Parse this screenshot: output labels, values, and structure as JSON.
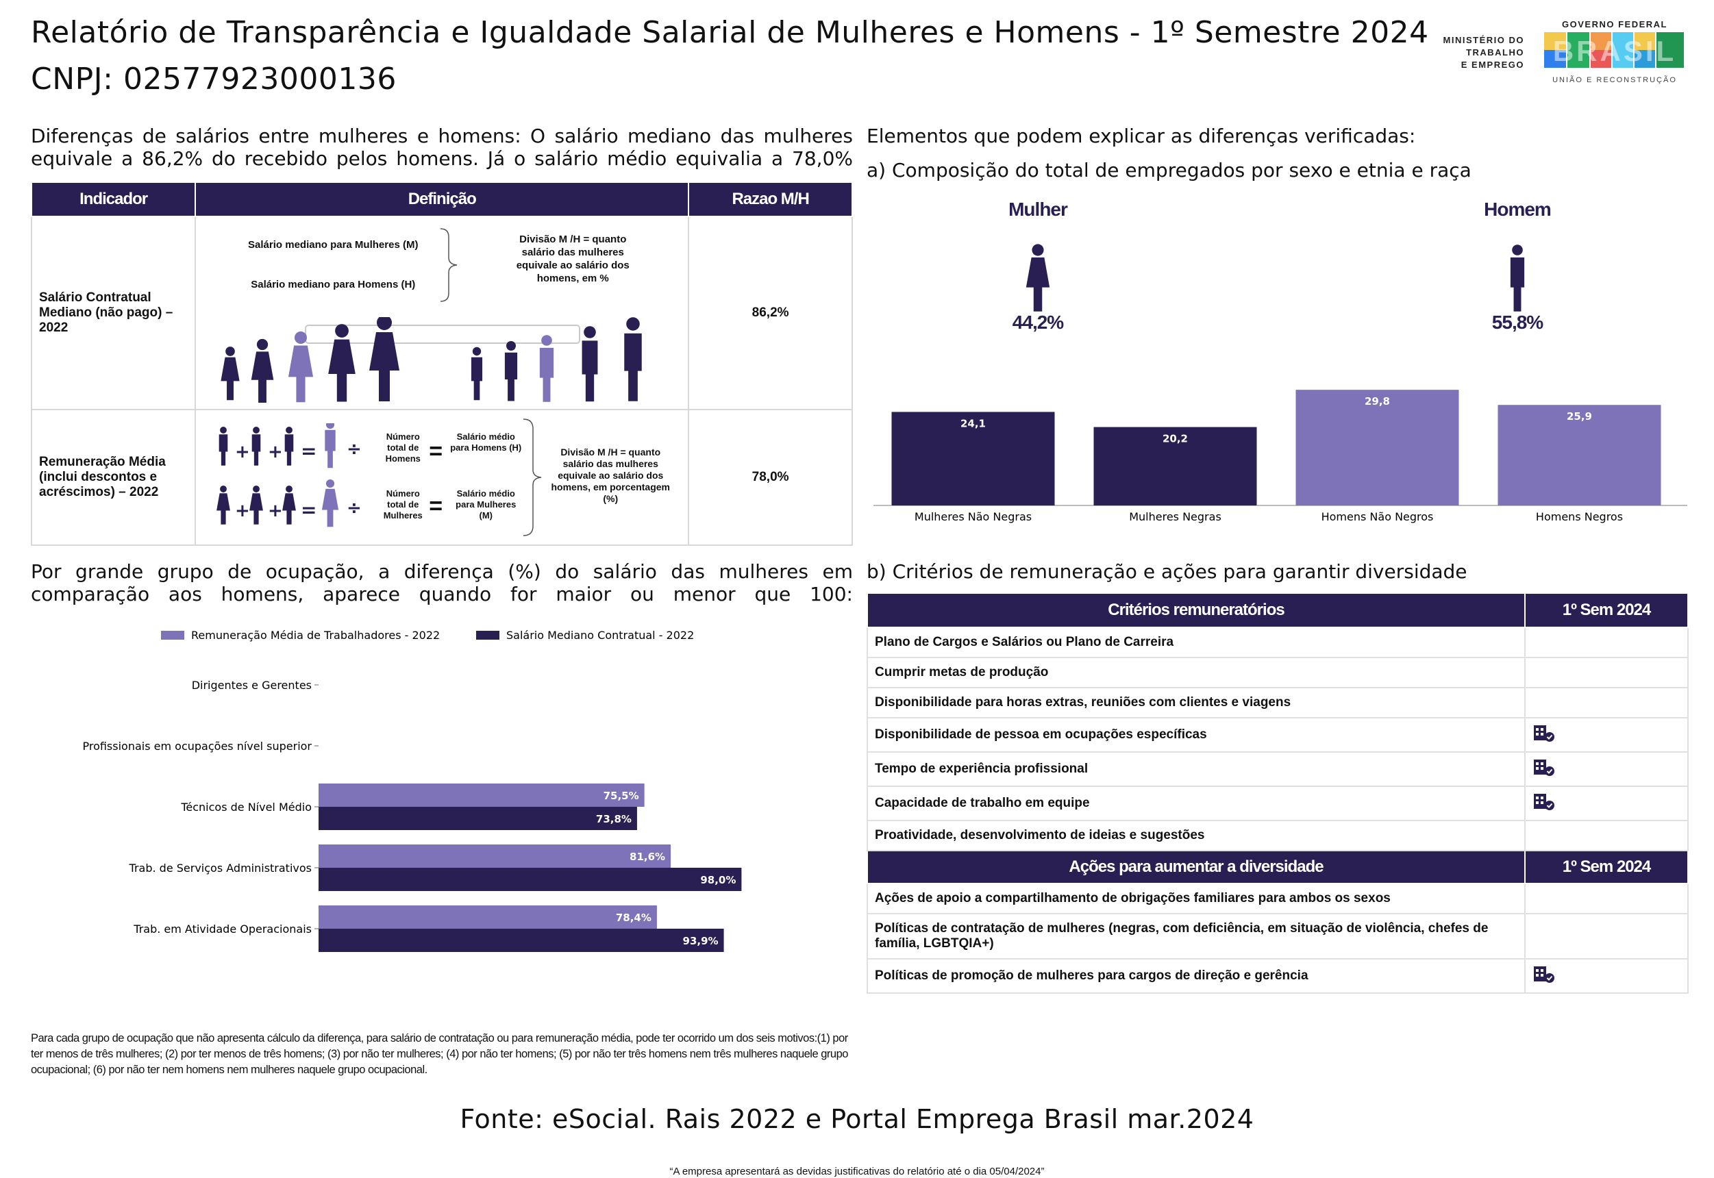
{
  "header": {
    "title": "Relatório de Transparência e Igualdade Salarial de Mulheres e Homens - 1º Semestre 2024",
    "cnpj": "CNPJ: 02577923000136",
    "ministry_lines": [
      "MINISTÉRIO DO",
      "TRABALHO",
      "E EMPREGO"
    ],
    "gov_top": "GOVERNO FEDERAL",
    "gov_logo": "BRASIL",
    "gov_bottom": "UNIÃO E RECONSTRUÇÃO"
  },
  "left_intro": "Diferenças de salários entre mulheres e homens: O salário mediano das mulheres equivale a 86,2% do recebido pelos homens. Já o salário médio equivalia a 78,0%",
  "indicator_table": {
    "headers": [
      "Indicador",
      "Definição",
      "Razao M/H"
    ],
    "rows": [
      {
        "name": "Salário Contratual Mediano (não pago) – 2022",
        "value": "86,2%",
        "def": {
          "women": "Salário mediano para Mulheres (M)",
          "men": "Salário mediano para Homens (H)",
          "division": "Divisão M /H = quanto salário das mulheres equivale ao salário dos homens, em %"
        }
      },
      {
        "name": "Remuneração Média (inclui descontos e acréscimos) – 2022",
        "value": "78,0%",
        "def": {
          "num_men": "Número total de Homens",
          "sal_men": "Salário médio para Homens (H)",
          "num_women": "Número total de Mulheres",
          "sal_women": "Salário médio para Mulheres (M)",
          "division": "Divisão M /H = quanto salário das mulheres equivale ao salário dos homens, em porcentagem (%)"
        }
      }
    ]
  },
  "right_intro": "Elementos que podem explicar as diferenças verificadas:",
  "composition_heading": "a) Composição do total de empregados por sexo e etnia e raça",
  "gender": {
    "women_label": "Mulher",
    "women_pct": "44,2%",
    "men_label": "Homem",
    "men_pct": "55,8%"
  },
  "occupation_heading": "Por grande grupo de ocupação, a diferença (%) do salário das mulheres em comparação aos homens, aparece quando for maior ou menor que 100:",
  "criteria_heading": "b) Critérios de remuneração e ações para garantir diversidade",
  "criteria_table": {
    "header1": "Critérios remuneratórios",
    "header_col": "1º Sem 2024",
    "rows": [
      {
        "label": "Plano de Cargos e Salários ou Plano de Carreira",
        "checked": false
      },
      {
        "label": "Cumprir metas de produção",
        "checked": false
      },
      {
        "label": "Disponibilidade para horas extras, reuniões com clientes e viagens",
        "checked": false
      },
      {
        "label": "Disponibilidade de pessoa em ocupações específicas",
        "checked": true
      },
      {
        "label": "Tempo de experiência profissional",
        "checked": true
      },
      {
        "label": "Capacidade de trabalho em equipe",
        "checked": true
      },
      {
        "label": "Proatividade, desenvolvimento de ideias e sugestões",
        "checked": false
      }
    ],
    "header2": "Ações para aumentar a diversidade",
    "header_col2": "1º Sem 2024",
    "actions": [
      {
        "label": "Ações de apoio a compartilhamento de obrigações familiares para ambos os sexos",
        "checked": false
      },
      {
        "label": "Políticas de contratação de mulheres (negras, com deficiência, em situação de violência, chefes de família, LGBTQIA+)",
        "checked": false
      },
      {
        "label": "Políticas de promoção de mulheres para cargos de direção e gerência",
        "checked": true
      }
    ],
    "check_icon": "building-check-icon"
  },
  "note": "Para cada grupo de ocupação que não apresenta cálculo da diferença, para salário de contratação ou para remuneração média, pode ter ocorrido um dos seis motivos:(1) por ter menos de três mulheres; (2) por ter menos de três homens; (3) por não ter mulheres; (4) por não ter homens; (5) por não ter três homens nem três mulheres naquele grupo ocupacional; (6) por não ter nem homens nem mulheres naquele grupo ocupacional.",
  "fonte": "Fonte: eSocial. Rais 2022 e Portal Emprega Brasil mar.2024",
  "footnote": "“A empresa apresentará as devidas justificativas do relatório até o dia 05/04/2024”",
  "colors": {
    "dark": "#2a1f52",
    "light": "#7e72b8"
  },
  "chart_data": [
    {
      "type": "bar",
      "categories": [
        "Mulheres Não Negras",
        "Mulheres Negras",
        "Homens Não Negros",
        "Homens Negros"
      ],
      "values": [
        24.1,
        20.2,
        29.8,
        25.9
      ],
      "labels": [
        "24,1",
        "20,2",
        "29,8",
        "25,9"
      ],
      "colors": [
        "#2a1f52",
        "#2a1f52",
        "#7e72b8",
        "#7e72b8"
      ],
      "ylim": [
        0,
        30
      ]
    },
    {
      "type": "bar",
      "orientation": "horizontal",
      "categories": [
        "Dirigentes e Gerentes",
        "Profissionais em ocupações nível superior",
        "Técnicos de Nível Médio",
        "Trab. de Serviços Administrativos",
        "Trab. em Atividade Operacionais"
      ],
      "series": [
        {
          "name": "Remuneração Média de Trabalhadores - 2022",
          "color": "#7e72b8",
          "values": [
            null,
            null,
            75.5,
            81.6,
            78.4
          ],
          "labels": [
            "",
            "",
            "75,5%",
            "81,6%",
            "78,4%"
          ]
        },
        {
          "name": "Salário Mediano Contratual - 2022",
          "color": "#2a1f52",
          "values": [
            null,
            null,
            73.8,
            98.0,
            93.9
          ],
          "labels": [
            "",
            "",
            "73,8%",
            "98,0%",
            "93,9%"
          ]
        }
      ],
      "xlim": [
        0,
        100
      ],
      "legend": "top"
    }
  ]
}
